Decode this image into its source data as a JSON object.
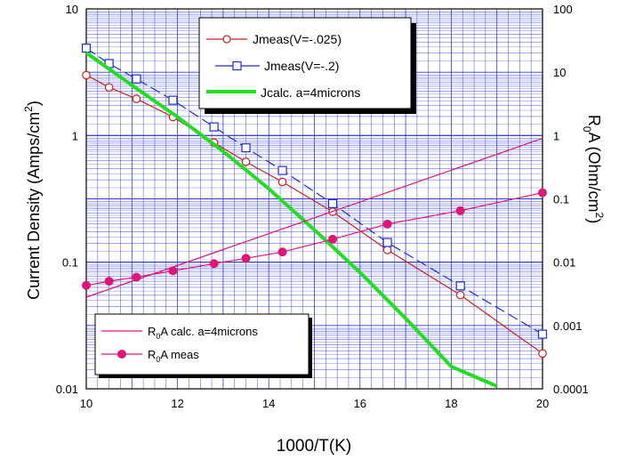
{
  "chart_data": {
    "type": "line",
    "xlabel": "1000/T(K)",
    "ylabel_left": "Current Density (Amps/cm",
    "ylabel_left_sup": "2",
    "ylabel_left_close": ")",
    "ylabel_right_main": "R",
    "ylabel_right_sub": "0",
    "ylabel_right_rest": "A  (Ohm/cm",
    "ylabel_right_sup": "2",
    "ylabel_right_close": ")",
    "xlim": [
      10,
      20
    ],
    "ylim_left": [
      0.01,
      10
    ],
    "ylim_right": [
      0.0001,
      100
    ],
    "y_scale": "log",
    "grid": true,
    "x_ticks": [
      "10",
      "12",
      "14",
      "16",
      "18",
      "20"
    ],
    "y_left_ticks": [
      "10",
      "1",
      "0.1",
      "0.01"
    ],
    "y_right_ticks": [
      "100",
      "10",
      "1",
      "0.1",
      "0.01",
      "0.001",
      "0.0001"
    ],
    "colors": {
      "grid": "#2e3ad0",
      "jmeas_025": "#cc1f1f",
      "jmeas_2": "#1f2fcc",
      "jcalc": "#22dd22",
      "r0a": "#e0157a"
    },
    "legend_top": {
      "placement": "top-right",
      "entries": [
        {
          "label": "Jmeas(V=-.025)",
          "series": "jmeas_025"
        },
        {
          "label": "Jmeas(V=-.2)",
          "series": "jmeas_2"
        },
        {
          "label": "Jcalc. a=4microns",
          "series": "jcalc"
        }
      ]
    },
    "legend_bottom": {
      "placement": "bottom-left",
      "entries": [
        {
          "pre": "R",
          "sub": "0",
          "post": "A calc. a=4microns",
          "series": "r0a_calc"
        },
        {
          "pre": "R",
          "sub": "0",
          "post": "A meas",
          "series": "r0a_meas"
        }
      ]
    },
    "series": [
      {
        "key": "jmeas_025",
        "name": "Jmeas(V=-.025)",
        "axis": "left",
        "marker": "circle-open",
        "dash": "solid",
        "x": [
          10.0,
          10.5,
          11.1,
          11.9,
          12.8,
          13.5,
          14.3,
          15.4,
          16.6,
          18.2,
          20.0
        ],
        "y": [
          3.0,
          2.4,
          1.95,
          1.4,
          0.88,
          0.62,
          0.43,
          0.25,
          0.125,
          0.055,
          0.019
        ]
      },
      {
        "key": "jmeas_2",
        "name": "Jmeas(V=-.2)",
        "axis": "left",
        "marker": "square-open",
        "dash": "dashed",
        "x": [
          10.0,
          10.5,
          11.1,
          11.9,
          12.8,
          13.5,
          14.3,
          15.4,
          16.6,
          18.2,
          20.0
        ],
        "y": [
          4.9,
          3.7,
          2.8,
          1.9,
          1.17,
          0.8,
          0.53,
          0.29,
          0.143,
          0.065,
          0.027
        ]
      },
      {
        "key": "jcalc",
        "name": "Jcalc. a=4microns",
        "axis": "left",
        "marker": "none",
        "dash": "solid",
        "x": [
          10.0,
          11.0,
          12.0,
          13.0,
          14.0,
          15.0,
          16.0,
          17.0,
          18.0,
          19.0
        ],
        "y": [
          4.5,
          2.5,
          1.4,
          0.75,
          0.38,
          0.18,
          0.083,
          0.036,
          0.015,
          0.0105
        ]
      },
      {
        "key": "r0a_calc",
        "name": "R0A calc. a=4microns",
        "axis": "right",
        "marker": "none",
        "dash": "solid",
        "x": [
          10.0,
          20.0
        ],
        "y": [
          0.0028,
          0.9
        ]
      },
      {
        "key": "r0a_meas",
        "name": "R0A meas",
        "axis": "right",
        "marker": "circle-filled",
        "dash": "solid",
        "x": [
          10.0,
          10.5,
          11.1,
          11.9,
          12.8,
          13.5,
          14.3,
          15.4,
          16.6,
          18.2,
          20.0
        ],
        "y": [
          0.0043,
          0.005,
          0.0058,
          0.0073,
          0.0095,
          0.0115,
          0.0145,
          0.023,
          0.04,
          0.065,
          0.125
        ]
      }
    ]
  }
}
